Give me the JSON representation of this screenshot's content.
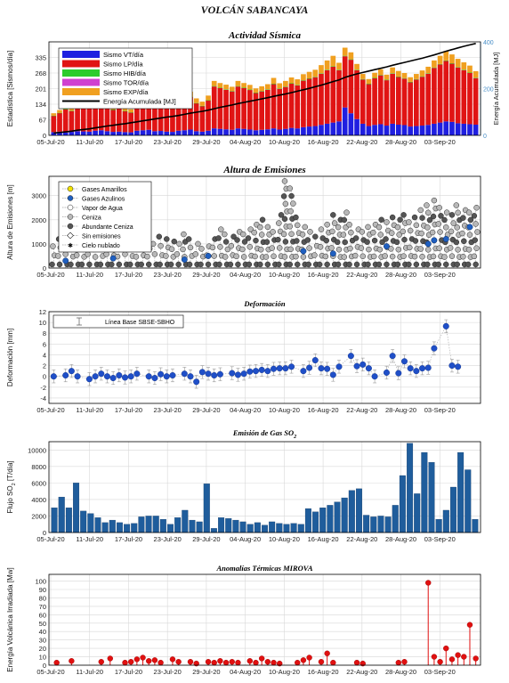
{
  "page": {
    "title": "VOLCÁN SABANCAYA"
  },
  "x_ticks": [
    "05-Jul-20",
    "11-Jul-20",
    "17-Jul-20",
    "23-Jul-20",
    "29-Jul-20",
    "04-Aug-20",
    "10-Aug-20",
    "16-Aug-20",
    "22-Aug-20",
    "28-Aug-20",
    "03-Sep-20"
  ],
  "chart_data": [
    {
      "id": "seismic",
      "type": "bar",
      "title": "Actividad Sísmica",
      "ylabel": "Estadística [Sismos/día]",
      "ylabel_right": "Energía Acumulada [MJ]",
      "yticks": [
        0,
        67,
        134,
        201,
        268,
        335
      ],
      "ylim": [
        0,
        402
      ],
      "y2ticks": [
        0,
        200,
        400
      ],
      "y2lim": [
        0,
        400
      ],
      "colors": {
        "vt": "#1f1fe0",
        "lp": "#e01414",
        "hib": "#2ccc2c",
        "tor": "#d040d0",
        "exp": "#f0a020",
        "energy": "#000000",
        "axis2": "#4a90c8"
      },
      "legend": [
        {
          "label": "Sismo VT/día",
          "color": "#1f1fe0",
          "kind": "box"
        },
        {
          "label": "Sismo LP/día",
          "color": "#e01414",
          "kind": "box"
        },
        {
          "label": "Sismo HIB/día",
          "color": "#2ccc2c",
          "kind": "box"
        },
        {
          "label": "Sismo TOR/día",
          "color": "#d040d0",
          "kind": "box"
        },
        {
          "label": "Sismo EXP/día",
          "color": "#f0a020",
          "kind": "box"
        },
        {
          "label": "Energía Acumulada [MJ]",
          "color": "#000000",
          "kind": "line"
        }
      ],
      "vt": [
        14,
        16,
        12,
        15,
        18,
        17,
        16,
        20,
        22,
        18,
        15,
        16,
        14,
        13,
        20,
        22,
        24,
        18,
        19,
        16,
        15,
        20,
        22,
        25,
        18,
        16,
        20,
        30,
        28,
        26,
        24,
        30,
        28,
        25,
        22,
        24,
        26,
        30,
        25,
        28,
        32,
        30,
        35,
        38,
        40,
        45,
        50,
        55,
        60,
        120,
        95,
        70,
        50,
        40,
        45,
        48,
        42,
        50,
        46,
        44,
        38,
        40,
        42,
        45,
        50,
        55,
        60,
        58,
        52,
        50,
        48,
        46
      ],
      "lp": [
        70,
        80,
        100,
        90,
        110,
        105,
        100,
        115,
        120,
        110,
        95,
        100,
        90,
        85,
        110,
        120,
        125,
        110,
        115,
        105,
        100,
        120,
        130,
        140,
        120,
        110,
        130,
        180,
        175,
        170,
        165,
        180,
        175,
        170,
        160,
        165,
        170,
        190,
        175,
        180,
        190,
        185,
        200,
        205,
        210,
        220,
        230,
        240,
        220,
        220,
        230,
        210,
        190,
        180,
        200,
        210,
        195,
        215,
        205,
        200,
        190,
        200,
        210,
        220,
        240,
        250,
        260,
        250,
        240,
        230,
        220,
        200
      ],
      "hib": [
        1,
        1,
        1,
        1,
        1,
        1,
        1,
        1,
        1,
        1,
        1,
        1,
        1,
        1,
        1,
        1,
        1,
        1,
        1,
        1,
        1,
        1,
        1,
        1,
        1,
        1,
        1,
        2,
        2,
        2,
        2,
        2,
        2,
        2,
        2,
        2,
        2,
        2,
        2,
        2,
        2,
        2,
        2,
        2,
        2,
        2,
        2,
        2,
        2,
        2,
        2,
        2,
        2,
        2,
        2,
        2,
        2,
        2,
        2,
        2,
        2,
        2,
        2,
        2,
        2,
        2,
        2,
        2,
        2,
        2,
        2,
        2
      ],
      "tor": [
        0,
        0,
        0,
        0,
        0,
        0,
        0,
        0,
        0,
        0,
        0,
        0,
        0,
        0,
        0,
        0,
        0,
        0,
        0,
        0,
        0,
        0,
        0,
        0,
        0,
        0,
        0,
        0,
        0,
        0,
        0,
        0,
        0,
        0,
        0,
        0,
        0,
        0,
        0,
        0,
        0,
        0,
        0,
        0,
        0,
        0,
        0,
        0,
        0,
        0,
        0,
        0,
        0,
        0,
        0,
        0,
        0,
        0,
        0,
        0,
        0,
        0,
        0,
        0,
        0,
        0,
        0,
        0,
        0,
        0,
        0,
        0
      ],
      "exp": [
        10,
        12,
        15,
        14,
        16,
        15,
        14,
        18,
        20,
        18,
        15,
        16,
        14,
        13,
        16,
        18,
        20,
        18,
        19,
        17,
        16,
        18,
        20,
        22,
        20,
        18,
        20,
        22,
        20,
        20,
        18,
        22,
        20,
        20,
        18,
        20,
        22,
        25,
        22,
        24,
        25,
        24,
        26,
        28,
        30,
        35,
        40,
        45,
        30,
        35,
        30,
        25,
        22,
        20,
        22,
        24,
        22,
        25,
        24,
        22,
        20,
        22,
        25,
        28,
        30,
        35,
        40,
        38,
        35,
        32,
        30,
        28
      ],
      "energy": [
        10,
        12,
        15,
        18,
        22,
        25,
        28,
        32,
        36,
        40,
        43,
        47,
        50,
        54,
        58,
        62,
        66,
        70,
        74,
        78,
        81,
        85,
        90,
        95,
        99,
        103,
        108,
        114,
        120,
        125,
        130,
        136,
        141,
        146,
        151,
        156,
        161,
        167,
        172,
        177,
        183,
        189,
        195,
        201,
        208,
        215,
        222,
        230,
        237,
        248,
        256,
        263,
        269,
        275,
        281,
        287,
        293,
        300,
        306,
        312,
        318,
        324,
        330,
        337,
        344,
        352,
        360,
        367,
        374,
        381,
        387,
        393
      ]
    },
    {
      "id": "emissions",
      "type": "scatter",
      "title": "Altura de Emisiones",
      "ylabel": "Altura de Emisiones [m]",
      "yticks": [
        0,
        1000,
        2000,
        3000
      ],
      "ylim": [
        0,
        3800
      ],
      "legend": [
        {
          "label": "Gases Amarillos",
          "color": "#f2e200",
          "kind": "dot"
        },
        {
          "label": "Gases Azulinos",
          "color": "#1f5fc0",
          "kind": "dot"
        },
        {
          "label": "Vapor de Agua",
          "color": "#ffffff",
          "kind": "dot"
        },
        {
          "label": "Ceniza",
          "color": "#b8b8b8",
          "kind": "dot"
        },
        {
          "label": "Abundante Ceniza",
          "color": "#555555",
          "kind": "dot"
        },
        {
          "label": "Sin emisiones",
          "color": "#ffffff",
          "kind": "diamond"
        },
        {
          "label": "Cielo nublado",
          "color": "#000000",
          "kind": "star"
        }
      ],
      "ceniza_max": [
        900,
        1200,
        1000,
        800,
        1300,
        1100,
        1000,
        1400,
        1200,
        1000,
        900,
        800,
        1000,
        1200,
        1100,
        900,
        800,
        1000,
        1300,
        1200,
        1100,
        1000,
        1400,
        1200,
        1000,
        800,
        900,
        1200,
        1600,
        1400,
        1300,
        1500,
        1400,
        1600,
        1800,
        2000,
        1700,
        1500,
        2200,
        3600,
        3300,
        2100,
        1700,
        1500,
        1300,
        1600,
        1800,
        2200,
        2000,
        2300,
        1800,
        1600,
        1500,
        1700,
        1800,
        2000,
        1900,
        2100,
        2000,
        2200,
        1900,
        2100,
        2400,
        2600,
        2800,
        2500,
        2300,
        2200,
        2600,
        2400,
        2300,
        2500
      ],
      "blue": [
        [
          2,
          300
        ],
        [
          10,
          400
        ],
        [
          22,
          350
        ],
        [
          26,
          500
        ],
        [
          42,
          700
        ],
        [
          47,
          600
        ],
        [
          56,
          900
        ],
        [
          63,
          1000
        ],
        [
          64,
          1150
        ],
        [
          66,
          1200
        ],
        [
          70,
          1700
        ]
      ]
    },
    {
      "id": "deformation",
      "type": "scatter",
      "title": "Deformación",
      "ylabel": "Deformación [mm]",
      "yticks": [
        -4,
        -2,
        0,
        2,
        4,
        6,
        8,
        10,
        12
      ],
      "ylim": [
        -5,
        12
      ],
      "legend": [
        {
          "label": "Línea Base SBSE-SBHO",
          "kind": "errorbar"
        }
      ],
      "x": [
        0,
        2,
        3,
        4,
        6,
        7,
        8,
        9,
        10,
        11,
        12,
        13,
        14,
        16,
        17,
        18,
        19,
        20,
        22,
        23,
        24,
        25,
        26,
        27,
        28,
        30,
        31,
        32,
        33,
        34,
        35,
        36,
        37,
        38,
        39,
        40,
        42,
        43,
        44,
        45,
        46,
        47,
        48,
        50,
        51,
        52,
        53,
        54,
        56,
        57,
        58,
        59,
        60,
        61,
        62,
        63,
        64,
        66,
        67,
        68
      ],
      "y": [
        0.0,
        0.2,
        1.0,
        0.0,
        -0.5,
        0.0,
        0.5,
        0.0,
        -0.3,
        0.2,
        -0.2,
        0.0,
        0.5,
        0.0,
        -0.3,
        0.4,
        0.0,
        0.2,
        0.5,
        0.0,
        -1.0,
        0.8,
        0.5,
        0.2,
        0.4,
        0.6,
        0.3,
        0.5,
        0.9,
        1.0,
        1.2,
        1.0,
        1.4,
        1.5,
        1.5,
        1.8,
        1.0,
        1.6,
        3.0,
        1.5,
        1.4,
        0.3,
        1.8,
        3.8,
        1.9,
        2.2,
        1.5,
        0.0,
        0.7,
        3.8,
        0.6,
        2.8,
        1.5,
        1.0,
        1.5,
        1.6,
        5.2,
        9.3,
        2.0,
        1.8
      ],
      "err": 1.2,
      "color": "#1f4fc8"
    },
    {
      "id": "so2",
      "type": "bar",
      "title": "Emisión de Gas SO",
      "title_sub": "2",
      "ylabel": "Flujo SO",
      "ylabel_sub": "2",
      "ylabel_tail": " [T/día]",
      "yticks": [
        0,
        2000,
        4000,
        6000,
        8000,
        10000
      ],
      "ylim": [
        0,
        11000
      ],
      "color": "#1f5d9c",
      "values": [
        3000,
        4300,
        3000,
        6000,
        2600,
        2300,
        1800,
        1200,
        1500,
        1200,
        1000,
        1100,
        1900,
        2000,
        2000,
        1600,
        1000,
        1800,
        2700,
        1500,
        1300,
        5900,
        500,
        1800,
        1700,
        1500,
        1300,
        1000,
        1200,
        900,
        1300,
        1100,
        1000,
        1100,
        1000,
        2900,
        2500,
        3000,
        3300,
        3700,
        4200,
        5100,
        5300,
        2100,
        1900,
        2000,
        1900,
        3300,
        6900,
        10800,
        4700,
        9700,
        8500,
        1600,
        2700,
        5500,
        9700,
        7600,
        1600
      ]
    },
    {
      "id": "mirova",
      "type": "scatter",
      "title": "Anomalías Térmicas MIROVA",
      "ylabel": "Energía Volcánica Irradiada [Mw]",
      "yticks": [
        0,
        10,
        20,
        30,
        40,
        50,
        60,
        70,
        80,
        90,
        100
      ],
      "ylim": [
        0,
        108
      ],
      "color": "#e01010",
      "x": [
        0.5,
        3,
        8,
        9.5,
        12,
        13,
        14,
        15,
        16,
        17,
        18,
        20,
        21,
        23,
        24,
        26,
        27,
        28,
        29,
        30,
        31,
        33,
        34,
        35,
        36,
        37,
        38,
        41,
        42,
        43,
        45,
        46,
        47,
        51,
        52,
        58,
        59,
        63,
        64,
        65,
        66,
        67,
        68,
        69,
        70,
        71
      ],
      "y": [
        3,
        5,
        4,
        8,
        3,
        4,
        7,
        9,
        5,
        6,
        3,
        7,
        4,
        4,
        2,
        4,
        3,
        5,
        3,
        4,
        3,
        5,
        3,
        8,
        4,
        3,
        2,
        3,
        6,
        9,
        4,
        14,
        3,
        3,
        2,
        3,
        4,
        98,
        10,
        4,
        20,
        7,
        12,
        10,
        48,
        8
      ]
    }
  ]
}
